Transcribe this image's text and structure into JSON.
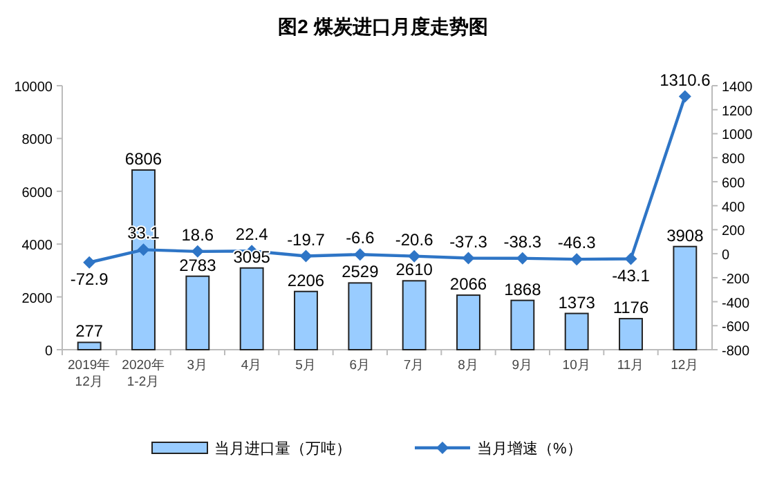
{
  "chart_data": {
    "type": "bar",
    "title": "图2 煤炭进口月度走势图",
    "categories": [
      "2019年\n12月",
      "2020年\n1-2月",
      "3月",
      "4月",
      "5月",
      "6月",
      "7月",
      "8月",
      "9月",
      "10月",
      "11月",
      "12月"
    ],
    "series": [
      {
        "name": "当月进口量（万吨）",
        "color": "#99ccff",
        "values": [
          277,
          6806,
          2783,
          3095,
          2206,
          2529,
          2610,
          2066,
          1868,
          1373,
          1176,
          3908
        ]
      },
      {
        "name": "当月增速（%）",
        "type": "line",
        "axis": "y2",
        "color": "#2e75c6",
        "marker": "diamond",
        "values": [
          -72.9,
          33.1,
          18.6,
          22.4,
          -19.7,
          -6.6,
          -20.6,
          -37.3,
          -38.3,
          -46.3,
          -43.1,
          1310.6
        ]
      }
    ],
    "ylim": [
      0,
      10000
    ],
    "yticks": [
      0,
      2000,
      4000,
      6000,
      8000,
      10000
    ],
    "y2lim": [
      -800,
      1400
    ],
    "y2ticks": [
      -800,
      -600,
      -400,
      -200,
      0,
      200,
      400,
      600,
      800,
      1000,
      1200,
      1400
    ],
    "data_labels": true,
    "legend": "bottom",
    "grid": false
  }
}
